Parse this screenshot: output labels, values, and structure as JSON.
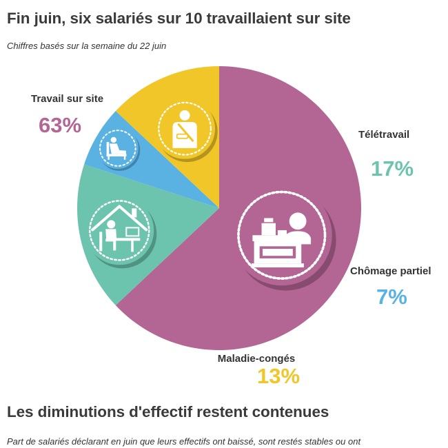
{
  "header": {
    "title": "Fin juin, six salariés sur 10 travaillaient sur site",
    "subtitle": "Chiffres basés sur la semaine du 22 juin"
  },
  "section2": {
    "title": "Les diminutions d'effectif restent contenues",
    "subtitle": "Part de salariés déclarant en juin que leurs effectifs ont baissé, sont restés stables ou ont"
  },
  "chart_data": {
    "type": "pie",
    "title": "Fin juin, six salariés sur 10 travaillaient sur site",
    "subtitle": "Chiffres basés sur la semaine du 22 juin",
    "unit": "%",
    "slices": [
      {
        "label": "Travail sur site",
        "value": 63,
        "value_label": "63%",
        "color": "#b36594",
        "icon": "cashier-icon"
      },
      {
        "label": "Télétravail",
        "value": 17,
        "value_label": "17%",
        "color": "#6dc4ae",
        "icon": "remote-work-icon"
      },
      {
        "label": "Chômage partiel",
        "value": 7,
        "value_label": "7%",
        "color": "#5ab2e3",
        "icon": "armchair-icon"
      },
      {
        "label": "Maladie-congés",
        "value": 13,
        "value_label": "13%",
        "color": "#f0c629",
        "icon": "injured-person-icon"
      }
    ]
  }
}
